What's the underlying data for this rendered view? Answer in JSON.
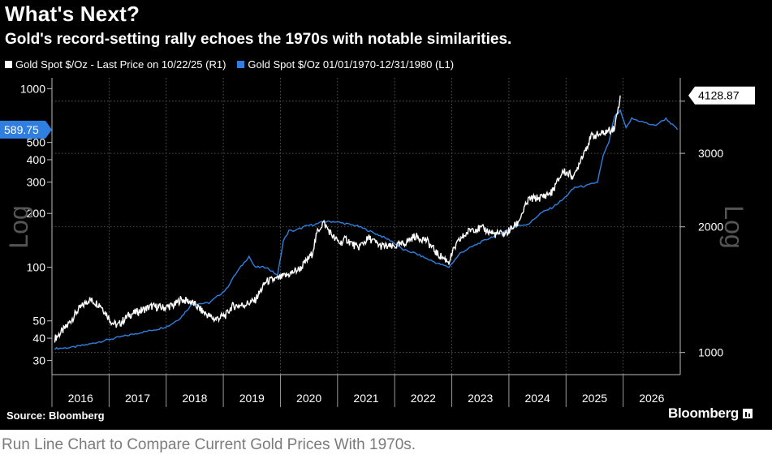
{
  "title": "What's Next?",
  "subtitle": "Gold's record-setting rally echoes the 1970s with notable similarities.",
  "source": "Source: Bloomberg",
  "brand": "Bloomberg",
  "caption": "Run Line Chart to Compare Current Gold Prices With 1970s.",
  "colors": {
    "current": "#ffffff",
    "seventies": "#2f7fe0",
    "grid": "#6a6a6a"
  },
  "chart_data": {
    "type": "line",
    "title": "What's Next?",
    "legend_position": "top-left",
    "axis_watermark_left": "Log",
    "axis_watermark_right": "Log",
    "x_categories": [
      "2016",
      "2017",
      "2018",
      "2019",
      "2020",
      "2021",
      "2022",
      "2023",
      "2024",
      "2025",
      "2026"
    ],
    "left_axis": {
      "scale": "log",
      "ticks": [
        30,
        40,
        50,
        100,
        200,
        300,
        400,
        500,
        1000
      ],
      "range": [
        25,
        1150
      ]
    },
    "right_axis": {
      "scale": "log",
      "ticks": [
        1000,
        2000,
        3000,
        4000
      ],
      "tick_labels": [
        "1000",
        "2000",
        "3000",
        ""
      ],
      "range": [
        885,
        4550
      ]
    },
    "series": [
      {
        "name": "Gold Spot $/Oz - Last Price on 10/22/25 (R1)",
        "axis": "right",
        "color": "#ffffff",
        "last_value": "4128.87",
        "x": [
          2015.9,
          2016.1,
          2016.3,
          2016.5,
          2016.7,
          2016.9,
          2017.0,
          2017.2,
          2017.4,
          2017.6,
          2017.8,
          2018.0,
          2018.1,
          2018.3,
          2018.5,
          2018.7,
          2018.9,
          2019.0,
          2019.2,
          2019.4,
          2019.6,
          2019.8,
          2020.0,
          2020.2,
          2020.4,
          2020.5,
          2020.6,
          2020.8,
          2020.9,
          2021.0,
          2021.2,
          2021.4,
          2021.6,
          2021.8,
          2022.0,
          2022.2,
          2022.4,
          2022.6,
          2022.8,
          2022.9,
          2023.0,
          2023.2,
          2023.4,
          2023.6,
          2023.8,
          2024.0,
          2024.2,
          2024.4,
          2024.6,
          2024.8,
          2025.0,
          2025.1,
          2025.3,
          2025.5,
          2025.7,
          2025.8
        ],
        "y": [
          1080,
          1150,
          1260,
          1340,
          1300,
          1180,
          1160,
          1230,
          1260,
          1290,
          1280,
          1300,
          1340,
          1320,
          1250,
          1200,
          1230,
          1290,
          1300,
          1330,
          1480,
          1500,
          1540,
          1590,
          1720,
          1950,
          2050,
          1870,
          1830,
          1870,
          1780,
          1880,
          1800,
          1790,
          1820,
          1900,
          1860,
          1720,
          1650,
          1780,
          1870,
          1980,
          1980,
          1920,
          1930,
          2040,
          2330,
          2350,
          2420,
          2720,
          2640,
          2900,
          3300,
          3350,
          3450,
          4128.87
        ]
      },
      {
        "name": "Gold Spot $/Oz 01/01/1970-12/31/1980 (L1)",
        "axis": "left",
        "color": "#2f7fe0",
        "last_value": "589.75",
        "x": [
          2015.9,
          2016.2,
          2016.5,
          2016.8,
          2017.1,
          2017.4,
          2017.7,
          2017.9,
          2018.1,
          2018.3,
          2018.6,
          2018.9,
          2019.0,
          2019.1,
          2019.3,
          2019.4,
          2019.6,
          2019.8,
          2019.9,
          2020.0,
          2020.1,
          2020.3,
          2020.5,
          2020.6,
          2020.8,
          2021.0,
          2021.2,
          2021.4,
          2021.6,
          2021.8,
          2022.0,
          2022.2,
          2022.4,
          2022.6,
          2022.8,
          2023.0,
          2023.2,
          2023.4,
          2023.6,
          2023.8,
          2024.0,
          2024.2,
          2024.4,
          2024.6,
          2024.8,
          2025.0,
          2025.2,
          2025.4,
          2025.5,
          2025.6,
          2025.7,
          2025.8,
          2025.9,
          2026.0,
          2026.2,
          2026.4,
          2026.6,
          2026.8
        ],
        "y": [
          35,
          35.5,
          37,
          39,
          41,
          43,
          45,
          47,
          52,
          62,
          63,
          75,
          85,
          95,
          115,
          100,
          100,
          90,
          140,
          160,
          160,
          170,
          175,
          180,
          180,
          175,
          170,
          160,
          150,
          140,
          125,
          120,
          112,
          105,
          100,
          120,
          130,
          140,
          150,
          160,
          170,
          175,
          200,
          215,
          240,
          280,
          285,
          300,
          420,
          500,
          700,
          750,
          600,
          680,
          650,
          620,
          680,
          589.75
        ]
      }
    ],
    "end_labels": {
      "left": "589.75",
      "right": "4128.87"
    }
  }
}
